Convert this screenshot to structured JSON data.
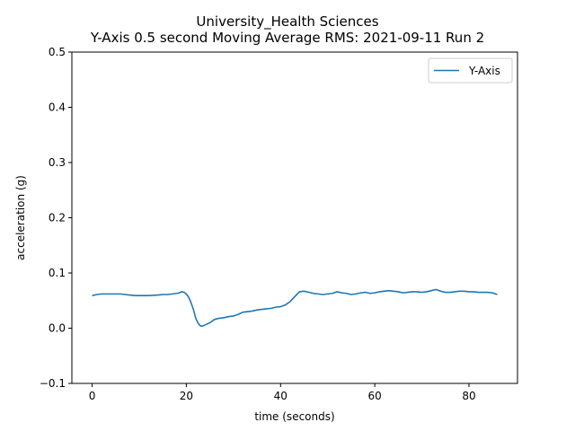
{
  "chart_data": {
    "type": "line",
    "title": "University_Health Sciences",
    "subtitle": "Y-Axis 0.5 second Moving Average RMS: 2021-09-11 Run 2",
    "xlabel": "time (seconds)",
    "ylabel": "acceleration (g)",
    "xlim": [
      -4.3,
      90.3
    ],
    "ylim": [
      -0.1,
      0.5
    ],
    "x_ticks": [
      0,
      20,
      40,
      60,
      80
    ],
    "y_ticks": [
      -0.1,
      0.0,
      0.1,
      0.2,
      0.3,
      0.4,
      0.5
    ],
    "x_tick_labels": [
      "0",
      "20",
      "40",
      "60",
      "80"
    ],
    "y_tick_labels": [
      "−0.1",
      "0.0",
      "0.1",
      "0.2",
      "0.3",
      "0.4",
      "0.5"
    ],
    "grid": false,
    "legend_position": "top-right",
    "series": [
      {
        "name": "Y-Axis",
        "color": "#1f77b4",
        "x": [
          0,
          1,
          2,
          4,
          6,
          7,
          8,
          9,
          10,
          12,
          14,
          15,
          16,
          17,
          18,
          18.5,
          19,
          19.5,
          20,
          20.5,
          21,
          21.5,
          22,
          22.5,
          23,
          23.5,
          24,
          25,
          26,
          27,
          28,
          29,
          30,
          31,
          32,
          33,
          34,
          35,
          36,
          37,
          38,
          39,
          40,
          41,
          42,
          43,
          44,
          45,
          46,
          47,
          48,
          49,
          50,
          51,
          52,
          53,
          54,
          55,
          56,
          57,
          58,
          59,
          60,
          61,
          62,
          63,
          64,
          65,
          66,
          67,
          68,
          69,
          70,
          71,
          72,
          73,
          74,
          75,
          76,
          77,
          78,
          79,
          80,
          81,
          82,
          83,
          84,
          85,
          86
        ],
        "values": [
          0.059,
          0.061,
          0.062,
          0.062,
          0.062,
          0.061,
          0.06,
          0.059,
          0.059,
          0.059,
          0.06,
          0.061,
          0.061,
          0.062,
          0.063,
          0.064,
          0.066,
          0.065,
          0.062,
          0.056,
          0.046,
          0.034,
          0.018,
          0.009,
          0.004,
          0.004,
          0.006,
          0.01,
          0.016,
          0.018,
          0.019,
          0.021,
          0.022,
          0.025,
          0.029,
          0.03,
          0.031,
          0.033,
          0.034,
          0.035,
          0.036,
          0.038,
          0.039,
          0.042,
          0.048,
          0.057,
          0.066,
          0.067,
          0.065,
          0.063,
          0.062,
          0.061,
          0.062,
          0.063,
          0.066,
          0.064,
          0.063,
          0.061,
          0.062,
          0.064,
          0.065,
          0.063,
          0.064,
          0.066,
          0.067,
          0.068,
          0.067,
          0.066,
          0.064,
          0.065,
          0.066,
          0.066,
          0.065,
          0.066,
          0.068,
          0.07,
          0.067,
          0.065,
          0.065,
          0.066,
          0.067,
          0.067,
          0.066,
          0.066,
          0.065,
          0.065,
          0.065,
          0.064,
          0.061
        ]
      }
    ]
  }
}
